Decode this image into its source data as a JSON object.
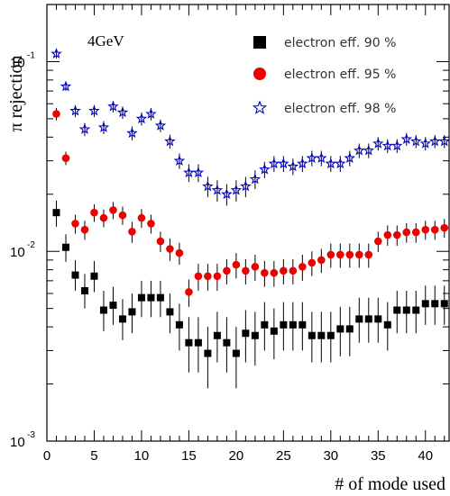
{
  "chart_data": {
    "type": "scatter",
    "xlabel": "# of mode used",
    "ylabel": "π rejection",
    "annotation": "4GeV",
    "y_scale": "log",
    "xlim": [
      0,
      42.5
    ],
    "ylim": [
      0.001,
      0.2
    ],
    "x_ticks": [
      0,
      5,
      10,
      15,
      20,
      25,
      30,
      35,
      40
    ],
    "y_tick_labels": [
      {
        "base": "10",
        "exp": "-1"
      },
      {
        "base": "10",
        "exp": "-2"
      },
      {
        "base": "10",
        "exp": "-3"
      }
    ],
    "grid": false,
    "legend_position": "top-right",
    "series": [
      {
        "name": "electron eff. 90 %",
        "marker": "square",
        "color": "#000000",
        "x": [
          1,
          2,
          3,
          4,
          5,
          6,
          7,
          8,
          9,
          10,
          11,
          12,
          13,
          14,
          15,
          16,
          17,
          18,
          19,
          20,
          21,
          22,
          23,
          24,
          25,
          26,
          27,
          28,
          29,
          30,
          31,
          32,
          33,
          34,
          35,
          36,
          37,
          38,
          39,
          40,
          41,
          42
        ],
        "y": [
          0.016,
          0.0105,
          0.0075,
          0.0062,
          0.0074,
          0.0049,
          0.0052,
          0.0044,
          0.0048,
          0.0057,
          0.0057,
          0.0057,
          0.0048,
          0.0041,
          0.0033,
          0.0033,
          0.0029,
          0.0036,
          0.0033,
          0.0029,
          0.0037,
          0.0036,
          0.0041,
          0.0038,
          0.0041,
          0.0041,
          0.0041,
          0.0036,
          0.0036,
          0.0036,
          0.0039,
          0.0039,
          0.0044,
          0.0044,
          0.0044,
          0.0041,
          0.0049,
          0.0049,
          0.0049,
          0.0053,
          0.0053,
          0.0053
        ],
        "err_low": [
          0.0135,
          0.0088,
          0.0062,
          0.005,
          0.0061,
          0.0038,
          0.0041,
          0.0034,
          0.0037,
          0.0045,
          0.0045,
          0.0045,
          0.0037,
          0.003,
          0.0023,
          0.0023,
          0.0019,
          0.0026,
          0.0023,
          0.0019,
          0.0026,
          0.0025,
          0.003,
          0.0027,
          0.003,
          0.003,
          0.003,
          0.0026,
          0.0026,
          0.0026,
          0.0028,
          0.0028,
          0.0033,
          0.0033,
          0.0033,
          0.003,
          0.0037,
          0.0037,
          0.0037,
          0.0041,
          0.0041,
          0.0041
        ],
        "err_high": [
          0.0185,
          0.0123,
          0.009,
          0.0076,
          0.0089,
          0.0062,
          0.0065,
          0.0056,
          0.006,
          0.007,
          0.007,
          0.007,
          0.006,
          0.0053,
          0.0045,
          0.0045,
          0.004,
          0.0048,
          0.0045,
          0.004,
          0.0049,
          0.0048,
          0.0054,
          0.005,
          0.0054,
          0.0054,
          0.0054,
          0.0048,
          0.0048,
          0.0048,
          0.0051,
          0.0051,
          0.0057,
          0.0057,
          0.0057,
          0.0054,
          0.0062,
          0.0062,
          0.0062,
          0.0066,
          0.0066,
          0.0066
        ]
      },
      {
        "name": "electron eff. 95 %",
        "marker": "circle",
        "color": "#ee0000",
        "x": [
          1,
          2,
          3,
          4,
          5,
          6,
          7,
          8,
          9,
          10,
          11,
          12,
          13,
          14,
          15,
          16,
          17,
          18,
          19,
          20,
          21,
          22,
          23,
          24,
          25,
          26,
          27,
          28,
          29,
          30,
          31,
          32,
          33,
          34,
          35,
          36,
          37,
          38,
          39,
          40,
          41,
          42
        ],
        "y": [
          0.053,
          0.031,
          0.014,
          0.013,
          0.016,
          0.015,
          0.0165,
          0.0155,
          0.0127,
          0.015,
          0.014,
          0.0113,
          0.0103,
          0.0098,
          0.0061,
          0.0074,
          0.0074,
          0.0074,
          0.0079,
          0.0085,
          0.0079,
          0.0083,
          0.0077,
          0.0077,
          0.0079,
          0.0079,
          0.0083,
          0.0087,
          0.009,
          0.0096,
          0.0096,
          0.0096,
          0.0096,
          0.0096,
          0.0113,
          0.0122,
          0.0122,
          0.0126,
          0.0126,
          0.013,
          0.013,
          0.0133
        ],
        "err_low": [
          0.049,
          0.0285,
          0.0124,
          0.0115,
          0.0143,
          0.0134,
          0.0148,
          0.0138,
          0.0111,
          0.0133,
          0.0124,
          0.0099,
          0.0089,
          0.0085,
          0.0051,
          0.0062,
          0.0062,
          0.0062,
          0.0067,
          0.0072,
          0.0067,
          0.007,
          0.0065,
          0.0065,
          0.0067,
          0.0067,
          0.007,
          0.0074,
          0.0077,
          0.0082,
          0.0082,
          0.0082,
          0.0082,
          0.0082,
          0.0099,
          0.0107,
          0.0107,
          0.0111,
          0.0111,
          0.0115,
          0.0115,
          0.0118
        ],
        "err_high": [
          0.057,
          0.0335,
          0.0156,
          0.0145,
          0.0177,
          0.0166,
          0.0182,
          0.0172,
          0.0143,
          0.0167,
          0.0156,
          0.0127,
          0.0117,
          0.0111,
          0.0071,
          0.0086,
          0.0086,
          0.0086,
          0.0091,
          0.0098,
          0.0091,
          0.0096,
          0.0089,
          0.0089,
          0.0091,
          0.0091,
          0.0096,
          0.01,
          0.0103,
          0.011,
          0.011,
          0.011,
          0.011,
          0.011,
          0.0127,
          0.0137,
          0.0137,
          0.0141,
          0.0141,
          0.0145,
          0.0145,
          0.0148
        ]
      },
      {
        "name": "electron eff. 98 %",
        "marker": "star",
        "color": "#0000cc",
        "x": [
          1,
          2,
          3,
          4,
          5,
          6,
          7,
          8,
          9,
          10,
          11,
          12,
          13,
          14,
          15,
          16,
          17,
          18,
          19,
          20,
          21,
          22,
          23,
          24,
          25,
          26,
          27,
          28,
          29,
          30,
          31,
          32,
          33,
          34,
          35,
          36,
          37,
          38,
          39,
          40,
          41,
          42
        ],
        "y": [
          0.11,
          0.074,
          0.055,
          0.044,
          0.055,
          0.045,
          0.058,
          0.054,
          0.042,
          0.05,
          0.053,
          0.046,
          0.038,
          0.03,
          0.026,
          0.026,
          0.022,
          0.021,
          0.02,
          0.021,
          0.022,
          0.024,
          0.027,
          0.029,
          0.029,
          0.028,
          0.029,
          0.031,
          0.031,
          0.029,
          0.029,
          0.031,
          0.034,
          0.034,
          0.037,
          0.036,
          0.036,
          0.039,
          0.038,
          0.037,
          0.038,
          0.038
        ],
        "err_low": [
          0.104,
          0.07,
          0.051,
          0.0405,
          0.051,
          0.0415,
          0.054,
          0.05,
          0.0385,
          0.046,
          0.049,
          0.0425,
          0.0348,
          0.0272,
          0.0232,
          0.0232,
          0.0193,
          0.0183,
          0.0174,
          0.0183,
          0.0193,
          0.0213,
          0.0243,
          0.0262,
          0.0262,
          0.0252,
          0.0262,
          0.0281,
          0.0281,
          0.0262,
          0.0262,
          0.0281,
          0.031,
          0.031,
          0.034,
          0.033,
          0.033,
          0.036,
          0.035,
          0.034,
          0.035,
          0.035
        ],
        "err_high": [
          0.116,
          0.078,
          0.059,
          0.0475,
          0.059,
          0.0485,
          0.062,
          0.058,
          0.0455,
          0.054,
          0.057,
          0.0495,
          0.0412,
          0.0328,
          0.0288,
          0.0288,
          0.0247,
          0.0237,
          0.0226,
          0.0237,
          0.0247,
          0.0267,
          0.0297,
          0.0318,
          0.0318,
          0.0308,
          0.0318,
          0.0339,
          0.0339,
          0.0318,
          0.0318,
          0.0339,
          0.037,
          0.037,
          0.04,
          0.039,
          0.039,
          0.042,
          0.041,
          0.04,
          0.041,
          0.041
        ]
      }
    ]
  }
}
